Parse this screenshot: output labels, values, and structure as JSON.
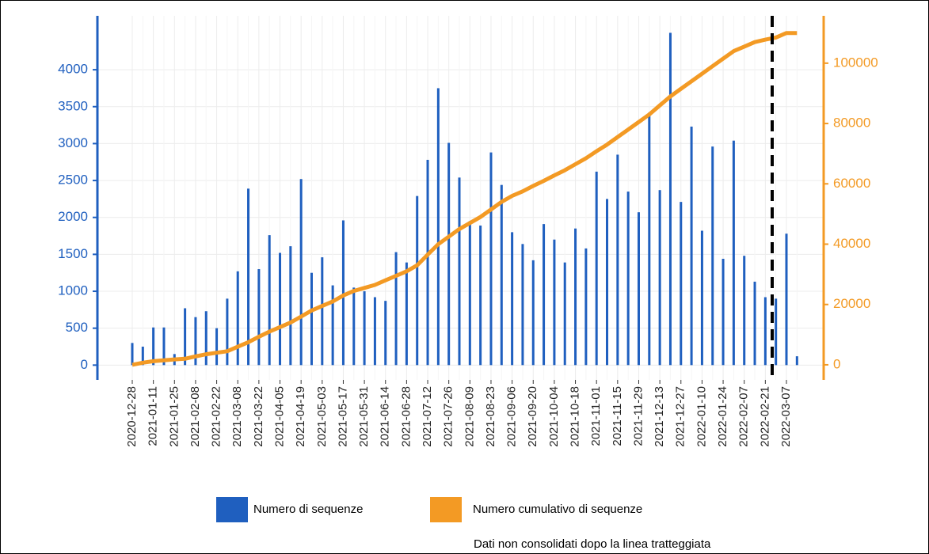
{
  "chart_data": {
    "type": "bar",
    "categories": [
      "2020-12-28",
      null,
      "2021-01-11",
      null,
      "2021-01-25",
      null,
      "2021-02-08",
      null,
      "2021-02-22",
      null,
      "2021-03-08",
      null,
      "2021-03-22",
      null,
      "2021-04-05",
      null,
      "2021-04-19",
      null,
      "2021-05-03",
      null,
      "2021-05-17",
      null,
      "2021-05-31",
      null,
      "2021-06-14",
      null,
      "2021-06-28",
      null,
      "2021-07-12",
      null,
      "2021-07-26",
      null,
      "2021-08-09",
      null,
      "2021-08-23",
      null,
      "2021-09-06",
      null,
      "2021-09-20",
      null,
      "2021-10-04",
      null,
      "2021-10-18",
      null,
      "2021-11-01",
      null,
      "2021-11-15",
      null,
      "2021-11-29",
      null,
      "2021-12-13",
      null,
      "2021-12-27",
      null,
      "2022-01-10",
      null,
      "2022-01-24",
      null,
      "2022-02-07",
      null,
      "2022-02-21",
      null,
      "2022-03-07",
      null
    ],
    "series": [
      {
        "name": "Numero di sequenze",
        "type": "bar",
        "color": "#1f5fbf",
        "values": [
          300,
          250,
          510,
          510,
          150,
          770,
          650,
          730,
          500,
          900,
          1270,
          2390,
          1300,
          1760,
          1520,
          1610,
          2520,
          1250,
          1460,
          1080,
          1960,
          1050,
          1000,
          920,
          870,
          1530,
          1390,
          2290,
          2780,
          3750,
          3010,
          2540,
          1950,
          1890,
          2880,
          2440,
          1800,
          1640,
          1420,
          1910,
          1700,
          1390,
          1850,
          1580,
          2620,
          2250,
          2850,
          2350,
          2070,
          3420,
          2370,
          4500,
          2210,
          3230,
          1820,
          2960,
          1440,
          3040,
          1480,
          1130,
          920,
          900,
          1780,
          120
        ]
      },
      {
        "name": "Numero cumulativo di sequenze",
        "type": "line",
        "axis": "y2",
        "color": "#f39a24",
        "values": [
          0,
          700,
          1200,
          1500,
          1800,
          2000,
          2800,
          3500,
          4000,
          4500,
          6000,
          7500,
          9300,
          11000,
          12500,
          14000,
          16000,
          18000,
          19500,
          21000,
          23000,
          24500,
          25500,
          26500,
          28000,
          29500,
          31000,
          33000,
          36500,
          40000,
          42500,
          45000,
          47000,
          49000,
          51500,
          54000,
          56000,
          57500,
          59300,
          61000,
          62800,
          64500,
          66500,
          68500,
          70800,
          73000,
          75500,
          78000,
          80500,
          83000,
          86000,
          89000,
          91500,
          94000,
          96500,
          99000,
          101500,
          104000,
          105500,
          107000,
          107800,
          108500,
          110000,
          110000
        ]
      }
    ],
    "ylim": [
      -200,
      4730
    ],
    "yticks": [
      0,
      500,
      1000,
      1500,
      2000,
      2500,
      3000,
      3500,
      4000
    ],
    "y2lim": [
      -5000,
      115700
    ],
    "y2ticks": [
      0,
      20000,
      40000,
      60000,
      80000,
      100000
    ],
    "grid": true,
    "note": "Dati non consolidati dopo la linea tratteggiata"
  }
}
